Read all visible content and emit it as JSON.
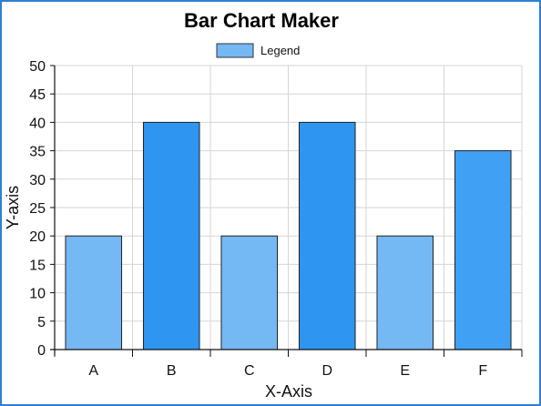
{
  "chart_data": {
    "type": "bar",
    "title": "Bar Chart Maker",
    "xlabel": "X-Axis",
    "ylabel": "Y-axis",
    "categories": [
      "A",
      "B",
      "C",
      "D",
      "E",
      "F"
    ],
    "series": [
      {
        "name": "Legend",
        "values": [
          20,
          40,
          20,
          40,
          20,
          35
        ]
      }
    ],
    "bar_colors": [
      "#74b8f4",
      "#2e95f0",
      "#74b8f4",
      "#2e95f0",
      "#74b8f4",
      "#3fa0f4"
    ],
    "ylim": [
      0,
      50
    ],
    "yticks": [
      0,
      5,
      10,
      15,
      20,
      25,
      30,
      35,
      40,
      45,
      50
    ],
    "grid": true,
    "legend_position": "top-center",
    "colors": {
      "frame_border": "#2f7fd3",
      "legend_swatch": "#74b8f4",
      "grid": "#d6d6d6",
      "axis": "#111111"
    }
  }
}
